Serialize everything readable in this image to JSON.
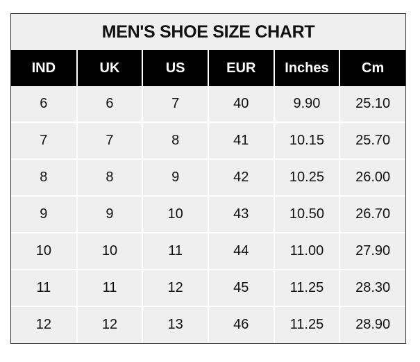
{
  "title": "MEN'S SHOE SIZE CHART",
  "columns": [
    "IND",
    "UK",
    "US",
    "EUR",
    "Inches",
    "Cm"
  ],
  "rows": [
    [
      "6",
      "6",
      "7",
      "40",
      "9.90",
      "25.10"
    ],
    [
      "7",
      "7",
      "8",
      "41",
      "10.15",
      "25.70"
    ],
    [
      "8",
      "8",
      "9",
      "42",
      "10.25",
      "26.00"
    ],
    [
      "9",
      "9",
      "10",
      "43",
      "10.50",
      "26.70"
    ],
    [
      "10",
      "10",
      "11",
      "44",
      "11.00",
      "27.90"
    ],
    [
      "11",
      "11",
      "12",
      "45",
      "11.25",
      "28.30"
    ],
    [
      "12",
      "12",
      "13",
      "46",
      "11.25",
      "28.90"
    ]
  ],
  "colors": {
    "header_bg": "#000000",
    "header_text": "#ffffff",
    "cell_bg": "#efefef"
  }
}
